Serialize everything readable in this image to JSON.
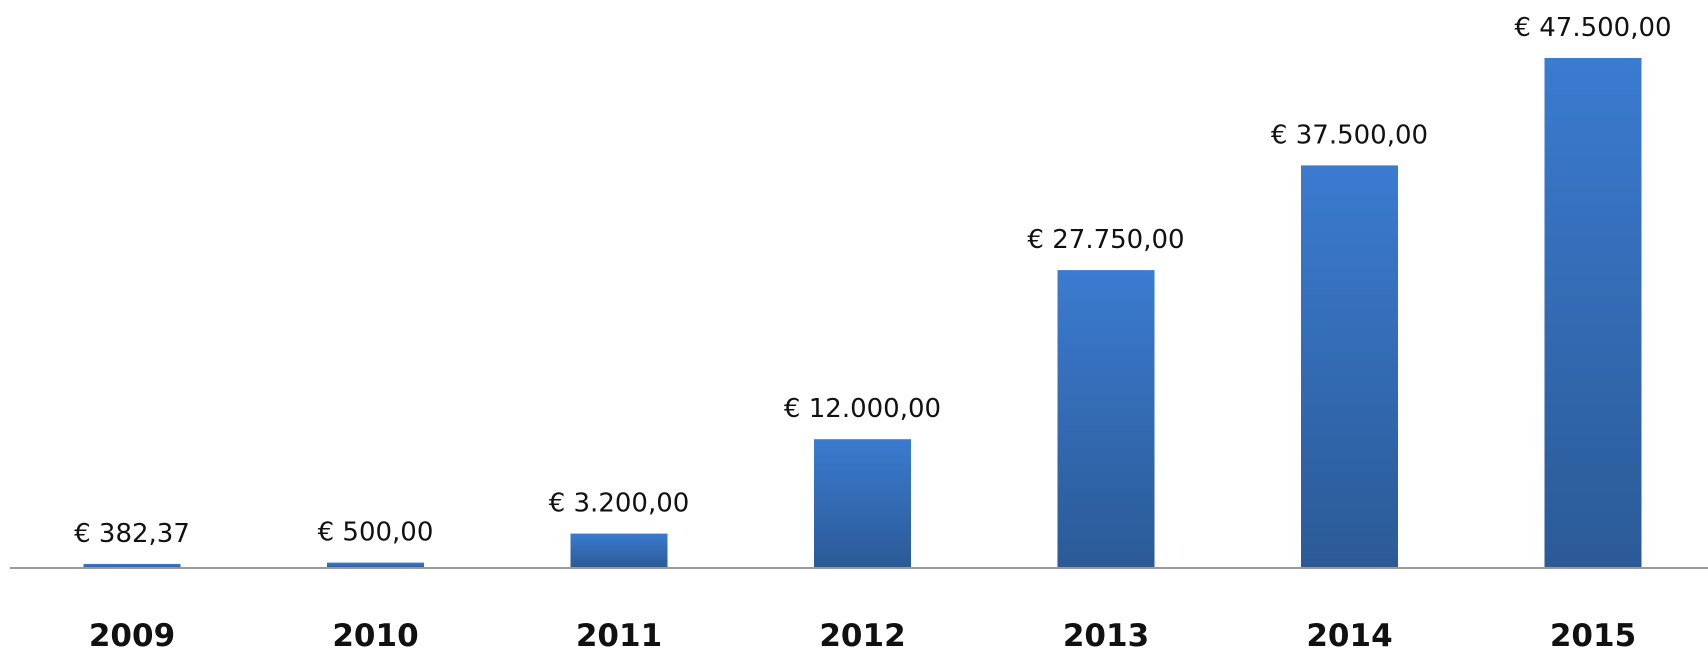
{
  "chart_data": {
    "type": "bar",
    "categories": [
      "2009",
      "2010",
      "2011",
      "2012",
      "2013",
      "2014",
      "2015"
    ],
    "values": [
      382.37,
      500,
      3200,
      12000,
      27750,
      37500,
      47500
    ],
    "data_labels": [
      "€ 382,37",
      "€ 500,00",
      "€ 3.200,00",
      "€ 12.000,00",
      "€ 27.750,00",
      "€ 37.500,00",
      "€ 47.500,00"
    ],
    "title": "",
    "xlabel": "",
    "ylabel": "",
    "ylim": [
      0,
      47500
    ],
    "grid": false,
    "legend": "none",
    "bar_color_top": "#3b7bd0",
    "bar_color_bottom": "#2b5a96"
  }
}
